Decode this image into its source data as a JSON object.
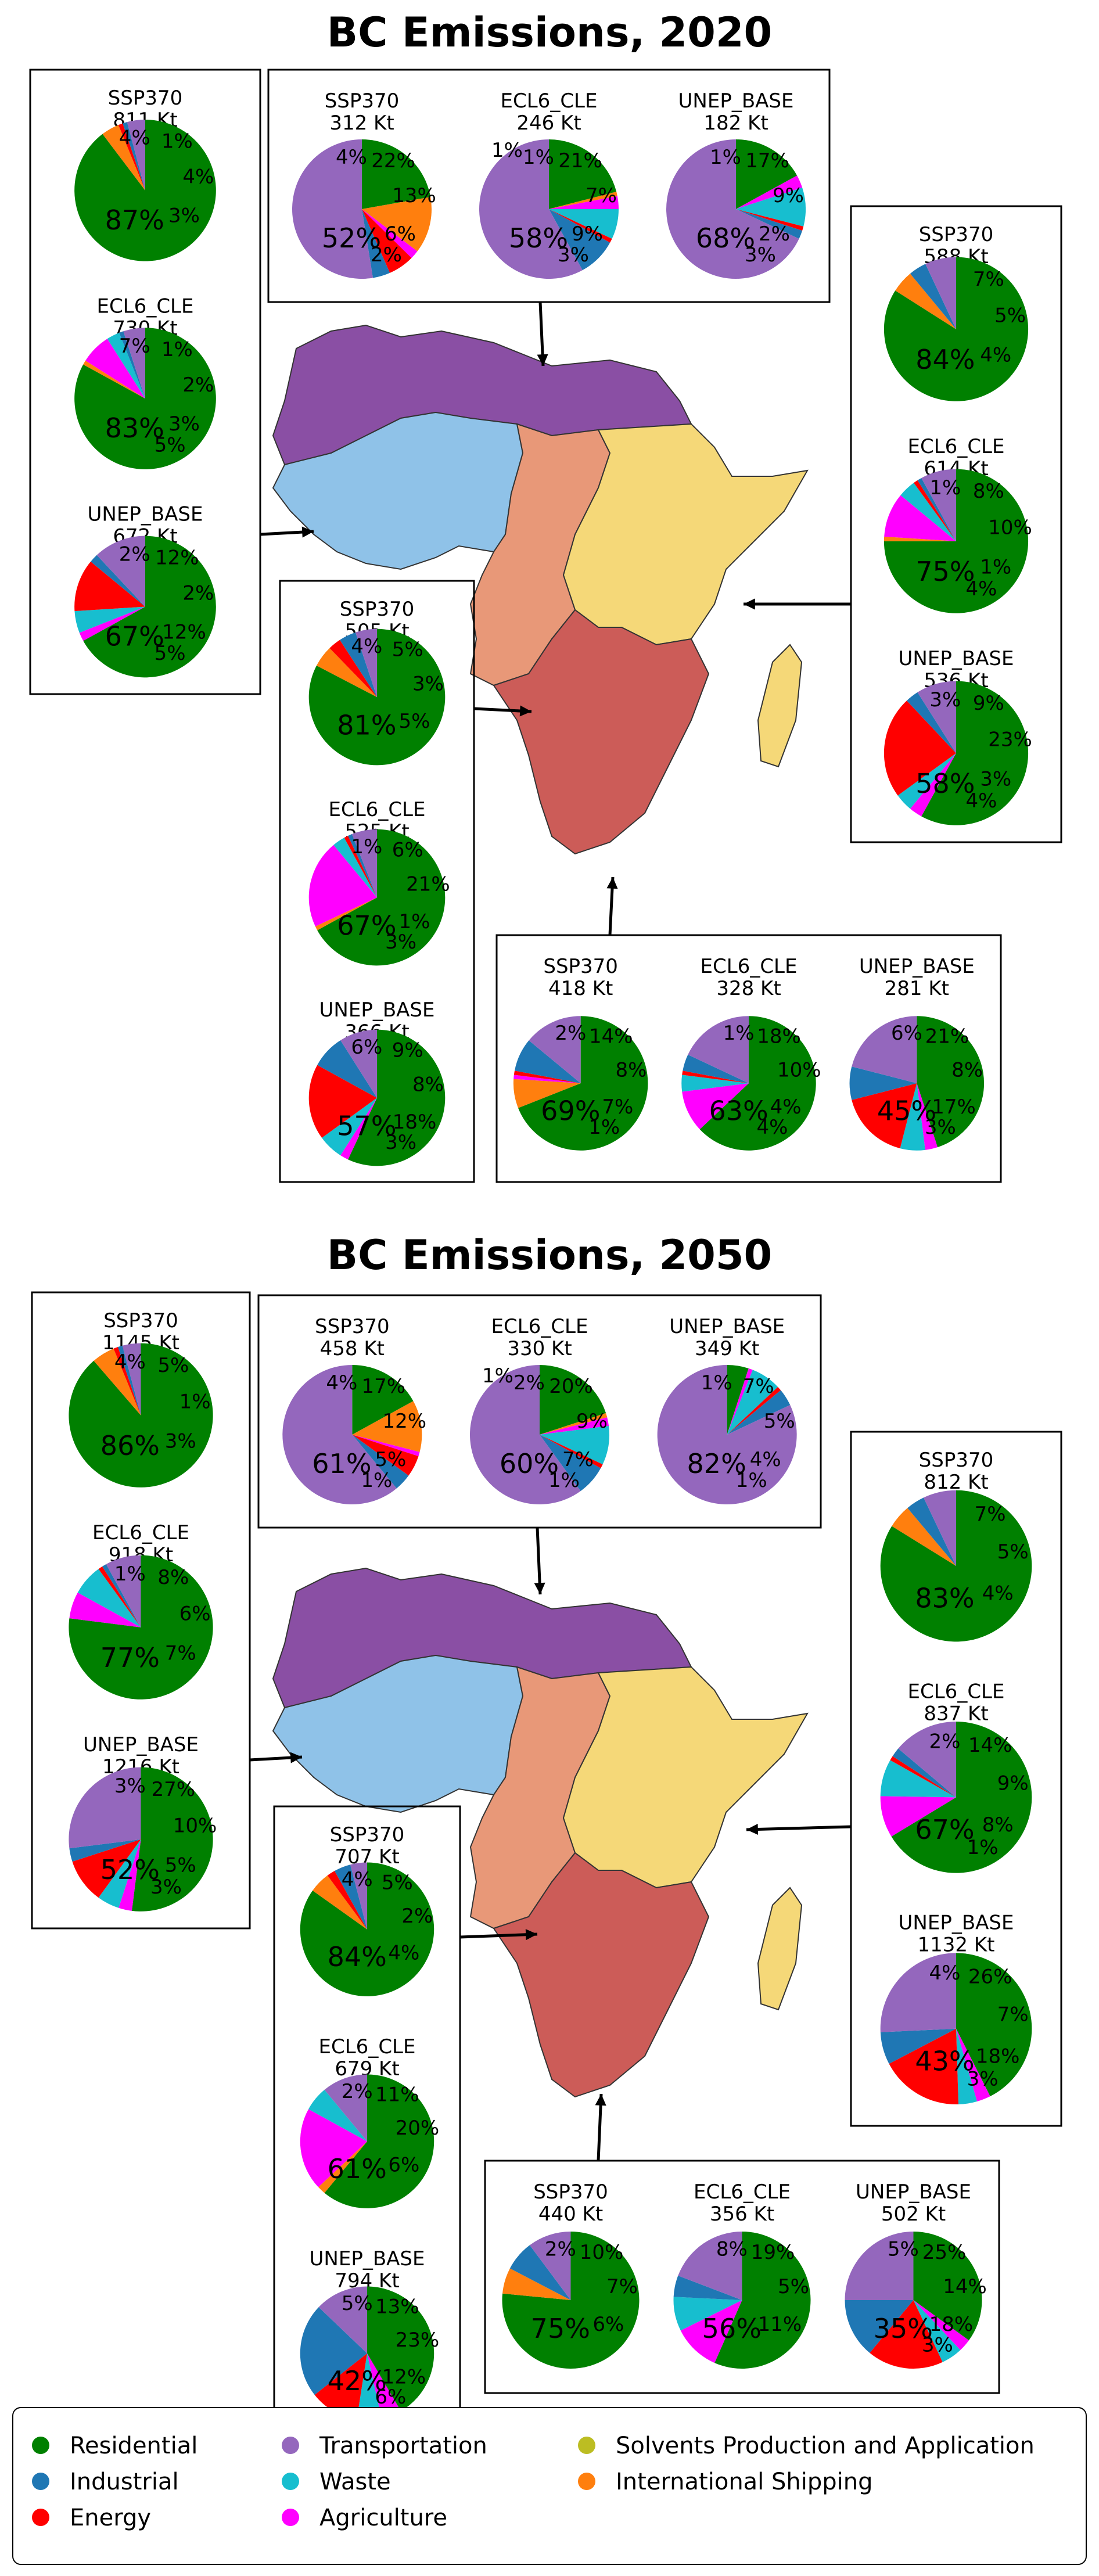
{
  "chart_data": [
    {
      "type": "pie",
      "title": "BC Emissions, 2020",
      "groups": [
        {
          "region": "West Africa",
          "pies": [
            {
              "name": "SSP370",
              "total": "811 Kt",
              "values": {
                "Residential": 87,
                "Industrial": 1,
                "Energy": 1,
                "Transportation": 4,
                "Waste": 0,
                "Agriculture": 0,
                "Solvents": 0,
                "Shipping": 4
              },
              "labels": [
                "87%",
                "1%",
                "4%",
                "3%",
                "4%"
              ]
            },
            {
              "name": "ECL6_CLE",
              "total": "730 Kt",
              "values": {
                "Residential": 83,
                "Industrial": 1,
                "Energy": 0,
                "Transportation": 5,
                "Waste": 3,
                "Agriculture": 7,
                "Solvents": 0,
                "Shipping": 1
              },
              "labels": [
                "83%",
                "1%",
                "2%",
                "3%",
                "7%",
                "5%"
              ]
            },
            {
              "name": "UNEP_BASE",
              "total": "672 Kt",
              "values": {
                "Residential": 67,
                "Industrial": 2,
                "Energy": 12,
                "Transportation": 12,
                "Waste": 5,
                "Agriculture": 2,
                "Solvents": 0,
                "Shipping": 0
              },
              "labels": [
                "67%",
                "12%",
                "2%",
                "12%",
                "2%",
                "5%"
              ]
            }
          ]
        },
        {
          "region": "North Africa",
          "pies": [
            {
              "name": "SSP370",
              "total": "312 Kt",
              "values": {
                "Residential": 22,
                "Industrial": 4,
                "Energy": 6,
                "Transportation": 52,
                "Waste": 0,
                "Agriculture": 2,
                "Solvents": 0,
                "Shipping": 13
              },
              "labels": [
                "52%",
                "22%",
                "13%",
                "6%",
                "4%",
                "2%"
              ]
            },
            {
              "name": "ECL6_CLE",
              "total": "246 Kt",
              "values": {
                "Residential": 21,
                "Industrial": 9,
                "Energy": 1,
                "Transportation": 58,
                "Waste": 7,
                "Agriculture": 3,
                "Solvents": 0,
                "Shipping": 1
              },
              "labels": [
                "58%",
                "21%",
                "7%",
                "9%",
                "1%",
                "3%",
                "1%"
              ]
            },
            {
              "name": "UNEP_BASE",
              "total": "182 Kt",
              "values": {
                "Residential": 17,
                "Industrial": 2,
                "Energy": 1,
                "Transportation": 68,
                "Waste": 9,
                "Agriculture": 3,
                "Solvents": 0,
                "Shipping": 0
              },
              "labels": [
                "68%",
                "17%",
                "9%",
                "2%",
                "1%",
                "3%"
              ]
            }
          ]
        },
        {
          "region": "East Africa",
          "pies": [
            {
              "name": "SSP370",
              "total": "588 Kt",
              "values": {
                "Residential": 84,
                "Industrial": 4,
                "Energy": 0,
                "Transportation": 7,
                "Waste": 0,
                "Agriculture": 0,
                "Solvents": 0,
                "Shipping": 5
              },
              "labels": [
                "84%",
                "7%",
                "5%",
                "4%"
              ]
            },
            {
              "name": "ECL6_CLE",
              "total": "614 Kt",
              "values": {
                "Residential": 75,
                "Industrial": 1,
                "Energy": 1,
                "Transportation": 8,
                "Waste": 4,
                "Agriculture": 10,
                "Solvents": 0,
                "Shipping": 1
              },
              "labels": [
                "75%",
                "8%",
                "10%",
                "1%",
                "1%",
                "4%"
              ]
            },
            {
              "name": "UNEP_BASE",
              "total": "536 Kt",
              "values": {
                "Residential": 58,
                "Industrial": 3,
                "Energy": 23,
                "Transportation": 9,
                "Waste": 4,
                "Agriculture": 3,
                "Solvents": 0,
                "Shipping": 0
              },
              "labels": [
                "58%",
                "9%",
                "23%",
                "3%",
                "3%",
                "4%"
              ]
            }
          ]
        },
        {
          "region": "Central Africa",
          "pies": [
            {
              "name": "SSP370",
              "total": "505 Kt",
              "values": {
                "Residential": 81,
                "Industrial": 4,
                "Energy": 3,
                "Transportation": 5,
                "Waste": 0,
                "Agriculture": 0,
                "Solvents": 0,
                "Shipping": 5
              },
              "labels": [
                "81%",
                "5%",
                "3%",
                "5%",
                "4%"
              ]
            },
            {
              "name": "ECL6_CLE",
              "total": "525 Kt",
              "values": {
                "Residential": 67,
                "Industrial": 1,
                "Energy": 1,
                "Transportation": 6,
                "Waste": 3,
                "Agriculture": 21,
                "Solvents": 0,
                "Shipping": 1
              },
              "labels": [
                "67%",
                "6%",
                "21%",
                "1%",
                "1%",
                "3%"
              ]
            },
            {
              "name": "UNEP_BASE",
              "total": "366 Kt",
              "values": {
                "Residential": 57,
                "Industrial": 8,
                "Energy": 18,
                "Transportation": 9,
                "Waste": 6,
                "Agriculture": 2,
                "Solvents": 0,
                "Shipping": 0
              },
              "labels": [
                "57%",
                "9%",
                "8%",
                "18%",
                "6%",
                "3%"
              ]
            }
          ]
        },
        {
          "region": "Southern Africa",
          "pies": [
            {
              "name": "SSP370",
              "total": "418 Kt",
              "values": {
                "Residential": 69,
                "Industrial": 8,
                "Energy": 1,
                "Transportation": 14,
                "Waste": 0,
                "Agriculture": 1,
                "Solvents": 0,
                "Shipping": 7
              },
              "labels": [
                "69%",
                "14%",
                "8%",
                "7%",
                "2%",
                "1%"
              ]
            },
            {
              "name": "ECL6_CLE",
              "total": "328 Kt",
              "values": {
                "Residential": 63,
                "Industrial": 4,
                "Energy": 1,
                "Transportation": 18,
                "Waste": 4,
                "Agriculture": 10,
                "Solvents": 0,
                "Shipping": 0
              },
              "labels": [
                "63%",
                "18%",
                "10%",
                "4%",
                "1%",
                "4%"
              ]
            },
            {
              "name": "UNEP_BASE",
              "total": "281 Kt",
              "values": {
                "Residential": 45,
                "Industrial": 8,
                "Energy": 17,
                "Transportation": 21,
                "Waste": 6,
                "Agriculture": 3,
                "Solvents": 0,
                "Shipping": 0
              },
              "labels": [
                "45%",
                "21%",
                "8%",
                "17%",
                "6%",
                "3%"
              ]
            }
          ]
        }
      ]
    },
    {
      "type": "pie",
      "title": "BC Emissions, 2050",
      "groups": [
        {
          "region": "West Africa",
          "pies": [
            {
              "name": "SSP370",
              "total": "1145 Kt",
              "values": {
                "Residential": 86,
                "Industrial": 1,
                "Energy": 1,
                "Transportation": 4,
                "Waste": 0,
                "Agriculture": 0,
                "Solvents": 0,
                "Shipping": 5
              },
              "labels": [
                "86%",
                "5%",
                "1%",
                "3%",
                "4%"
              ]
            },
            {
              "name": "ECL6_CLE",
              "total": "918 Kt",
              "values": {
                "Residential": 77,
                "Industrial": 1,
                "Energy": 1,
                "Transportation": 8,
                "Waste": 7,
                "Agriculture": 6,
                "Solvents": 0,
                "Shipping": 0
              },
              "labels": [
                "77%",
                "8%",
                "6%",
                "7%",
                "1%"
              ]
            },
            {
              "name": "UNEP_BASE",
              "total": "1216 Kt",
              "values": {
                "Residential": 52,
                "Industrial": 3,
                "Energy": 10,
                "Transportation": 27,
                "Waste": 5,
                "Agriculture": 3,
                "Solvents": 0,
                "Shipping": 0
              },
              "labels": [
                "52%",
                "27%",
                "10%",
                "5%",
                "3%",
                "3%"
              ]
            }
          ]
        },
        {
          "region": "North Africa",
          "pies": [
            {
              "name": "SSP370",
              "total": "458 Kt",
              "values": {
                "Residential": 17,
                "Industrial": 4,
                "Energy": 5,
                "Transportation": 61,
                "Waste": 0,
                "Agriculture": 1,
                "Solvents": 0,
                "Shipping": 12
              },
              "labels": [
                "61%",
                "17%",
                "12%",
                "5%",
                "4%",
                "1%"
              ]
            },
            {
              "name": "ECL6_CLE",
              "total": "330 Kt",
              "values": {
                "Residential": 20,
                "Industrial": 7,
                "Energy": 1,
                "Transportation": 60,
                "Waste": 9,
                "Agriculture": 2,
                "Solvents": 0,
                "Shipping": 1
              },
              "labels": [
                "60%",
                "20%",
                "9%",
                "7%",
                "2%",
                "1%",
                "1%"
              ]
            },
            {
              "name": "UNEP_BASE",
              "total": "349 Kt",
              "values": {
                "Residential": 5,
                "Industrial": 4,
                "Energy": 1,
                "Transportation": 82,
                "Waste": 7,
                "Agriculture": 1,
                "Solvents": 0,
                "Shipping": 0
              },
              "labels": [
                "82%",
                "7%",
                "5%",
                "4%",
                "1%",
                "1%"
              ]
            }
          ]
        },
        {
          "region": "East Africa",
          "pies": [
            {
              "name": "SSP370",
              "total": "812 Kt",
              "values": {
                "Residential": 83,
                "Industrial": 4,
                "Energy": 0,
                "Transportation": 7,
                "Waste": 0,
                "Agriculture": 0,
                "Solvents": 0,
                "Shipping": 5
              },
              "labels": [
                "83%",
                "7%",
                "5%",
                "4%"
              ]
            },
            {
              "name": "ECL6_CLE",
              "total": "837 Kt",
              "values": {
                "Residential": 67,
                "Industrial": 2,
                "Energy": 1,
                "Transportation": 14,
                "Waste": 8,
                "Agriculture": 9,
                "Solvents": 0,
                "Shipping": 0
              },
              "labels": [
                "67%",
                "14%",
                "9%",
                "8%",
                "2%",
                "1%"
              ]
            },
            {
              "name": "UNEP_BASE",
              "total": "1132 Kt",
              "values": {
                "Residential": 43,
                "Industrial": 7,
                "Energy": 18,
                "Transportation": 26,
                "Waste": 4,
                "Agriculture": 3,
                "Solvents": 0,
                "Shipping": 0
              },
              "labels": [
                "43%",
                "26%",
                "7%",
                "18%",
                "4%",
                "3%"
              ]
            }
          ]
        },
        {
          "region": "Central Africa",
          "pies": [
            {
              "name": "SSP370",
              "total": "707 Kt",
              "values": {
                "Residential": 84,
                "Industrial": 4,
                "Energy": 2,
                "Transportation": 4,
                "Waste": 0,
                "Agriculture": 0,
                "Solvents": 0,
                "Shipping": 5
              },
              "labels": [
                "84%",
                "5%",
                "2%",
                "4%",
                "4%"
              ]
            },
            {
              "name": "ECL6_CLE",
              "total": "679 Kt",
              "values": {
                "Residential": 61,
                "Industrial": 0,
                "Energy": 0,
                "Transportation": 11,
                "Waste": 6,
                "Agriculture": 20,
                "Solvents": 0,
                "Shipping": 2
              },
              "labels": [
                "61%",
                "11%",
                "20%",
                "6%",
                "2%"
              ]
            },
            {
              "name": "UNEP_BASE",
              "total": "794 Kt",
              "values": {
                "Residential": 42,
                "Industrial": 23,
                "Energy": 12,
                "Transportation": 13,
                "Waste": 6,
                "Agriculture": 5,
                "Solvents": 0,
                "Shipping": 0
              },
              "labels": [
                "42%",
                "13%",
                "23%",
                "12%",
                "5%",
                "6%"
              ]
            }
          ]
        },
        {
          "region": "Southern Africa",
          "pies": [
            {
              "name": "SSP370",
              "total": "440 Kt",
              "values": {
                "Residential": 75,
                "Industrial": 7,
                "Energy": 0,
                "Transportation": 10,
                "Waste": 0,
                "Agriculture": 0,
                "Solvents": 0,
                "Shipping": 6
              },
              "labels": [
                "75%",
                "10%",
                "7%",
                "6%",
                "2%"
              ]
            },
            {
              "name": "ECL6_CLE",
              "total": "356 Kt",
              "values": {
                "Residential": 56,
                "Industrial": 5,
                "Energy": 0,
                "Transportation": 19,
                "Waste": 8,
                "Agriculture": 11,
                "Solvents": 0,
                "Shipping": 0
              },
              "labels": [
                "56%",
                "19%",
                "5%",
                "11%",
                "8%"
              ]
            },
            {
              "name": "UNEP_BASE",
              "total": "502 Kt",
              "values": {
                "Residential": 35,
                "Industrial": 14,
                "Energy": 18,
                "Transportation": 25,
                "Waste": 5,
                "Agriculture": 3,
                "Solvents": 0,
                "Shipping": 0
              },
              "labels": [
                "35%",
                "25%",
                "14%",
                "18%",
                "5%",
                "3%"
              ]
            }
          ]
        }
      ]
    }
  ],
  "legend": {
    "placement": "bottom",
    "entries": [
      {
        "key": "Residential",
        "label": "Residential",
        "color": "#008000"
      },
      {
        "key": "Industrial",
        "label": "Industrial",
        "color": "#1f77b4"
      },
      {
        "key": "Energy",
        "label": "Energy",
        "color": "#ff0000"
      },
      {
        "key": "Transportation",
        "label": "Transportation",
        "color": "#9467bd"
      },
      {
        "key": "Waste",
        "label": "Waste",
        "color": "#17becf"
      },
      {
        "key": "Agriculture",
        "label": "Agriculture",
        "color": "#ff00ff"
      },
      {
        "key": "Solvents",
        "label": "Solvents Production and Application",
        "color": "#bcbd22"
      },
      {
        "key": "Shipping",
        "label": "International Shipping",
        "color": "#ff7f0e"
      }
    ]
  },
  "region_colors": {
    "North Africa": "#8a4fa4",
    "West Africa": "#8fc2e8",
    "Central Africa": "#e89878",
    "East Africa": "#f5d878",
    "Southern Africa": "#cc5c58"
  }
}
